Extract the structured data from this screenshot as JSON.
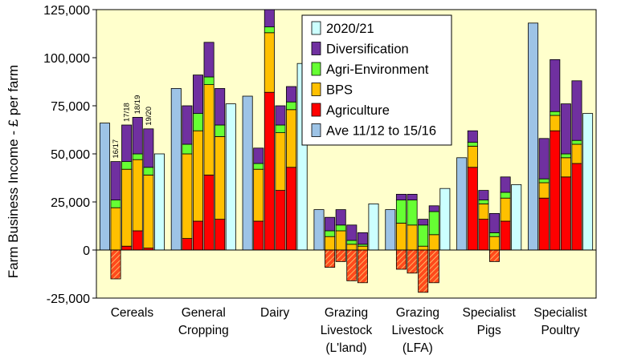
{
  "chart_data": {
    "type": "bar",
    "ylabel": "Farm Business Income - £ per farm",
    "ylim": [
      -25000,
      125000
    ],
    "yticks": [
      -25000,
      0,
      25000,
      50000,
      75000,
      100000,
      125000
    ],
    "ytick_labels": [
      "-25,000",
      "0",
      "25,000",
      "50,000",
      "75,000",
      "100,000",
      "125,000"
    ],
    "grid": false,
    "legend_placement": "top-right",
    "plot_background": "#ffffcc",
    "year_labels": [
      "16/17",
      "17/18",
      "18/19",
      "19/20"
    ],
    "series": [
      {
        "name": "2020/21",
        "color": "#ccffff"
      },
      {
        "name": "Diversification",
        "color": "#7030a0"
      },
      {
        "name": "Agri-Environment",
        "color": "#66ff33"
      },
      {
        "name": "BPS",
        "color": "#ffc000"
      },
      {
        "name": "Agriculture",
        "color": "#ff0000"
      },
      {
        "name": "Ave 11/12 to 15/16",
        "color": "#9dc3e6"
      }
    ],
    "categories": [
      {
        "label_lines": [
          "Cereals"
        ],
        "average": 66000,
        "years": [
          {
            "agriculture": -15000,
            "bps": 22000,
            "agri_env": 4000,
            "diversification": 20000
          },
          {
            "agriculture": 2000,
            "bps": 40000,
            "agri_env": 4000,
            "diversification": 19000
          },
          {
            "agriculture": 10000,
            "bps": 37000,
            "agri_env": 3000,
            "diversification": 19000
          },
          {
            "agriculture": 1000,
            "bps": 38000,
            "agri_env": 4000,
            "diversification": 20000
          }
        ],
        "year_2020_21": 50000
      },
      {
        "label_lines": [
          "General",
          "Cropping"
        ],
        "average": 84000,
        "years": [
          {
            "agriculture": 6000,
            "bps": 44000,
            "agri_env": 5000,
            "diversification": 20000
          },
          {
            "agriculture": 15000,
            "bps": 47000,
            "agri_env": 9000,
            "diversification": 20000
          },
          {
            "agriculture": 39000,
            "bps": 47000,
            "agri_env": 4000,
            "diversification": 18000
          },
          {
            "agriculture": 16000,
            "bps": 43000,
            "agri_env": 6000,
            "diversification": 19000
          }
        ],
        "year_2020_21": 76000
      },
      {
        "label_lines": [
          "Dairy"
        ],
        "average": 80000,
        "years": [
          {
            "agriculture": 15000,
            "bps": 27000,
            "agri_env": 3000,
            "diversification": 8000
          },
          {
            "agriculture": 82000,
            "bps": 31000,
            "agri_env": 3000,
            "diversification": 9000
          },
          {
            "agriculture": 31000,
            "bps": 30000,
            "agri_env": 4000,
            "diversification": 10000
          },
          {
            "agriculture": 43000,
            "bps": 30000,
            "agri_env": 4000,
            "diversification": 8000
          }
        ],
        "year_2020_21": 97000
      },
      {
        "label_lines": [
          "Grazing",
          "Livestock",
          "(L'land)"
        ],
        "average": 21000,
        "years": [
          {
            "agriculture": -9000,
            "bps": 7000,
            "agri_env": 3000,
            "diversification": 7000
          },
          {
            "agriculture": -6000,
            "bps": 10000,
            "agri_env": 3000,
            "diversification": 8000
          },
          {
            "agriculture": -16000,
            "bps": 3000,
            "agri_env": 2000,
            "diversification": 8000
          },
          {
            "agriculture": -17000,
            "bps": 2000,
            "agri_env": 1000,
            "diversification": 6000
          }
        ],
        "year_2020_21": 24000
      },
      {
        "label_lines": [
          "Grazing",
          "Livestock",
          "(LFA)"
        ],
        "average": 21000,
        "years": [
          {
            "agriculture": -10000,
            "bps": 14000,
            "agri_env": 12000,
            "diversification": 3000
          },
          {
            "agriculture": -12000,
            "bps": 13000,
            "agri_env": 13000,
            "diversification": 3000
          },
          {
            "agriculture": -22000,
            "bps": 2000,
            "agri_env": 11000,
            "diversification": 3000
          },
          {
            "agriculture": -17000,
            "bps": 8000,
            "agri_env": 12000,
            "diversification": 3000
          }
        ],
        "year_2020_21": 32000
      },
      {
        "label_lines": [
          "Specialist",
          "Pigs"
        ],
        "average": 48000,
        "years": [
          {
            "agriculture": 43000,
            "bps": 11000,
            "agri_env": 2000,
            "diversification": 6000
          },
          {
            "agriculture": 16000,
            "bps": 8000,
            "agri_env": 2000,
            "diversification": 5000
          },
          {
            "agriculture": -6000,
            "bps": 7000,
            "agri_env": 2000,
            "diversification": 10000
          },
          {
            "agriculture": 15000,
            "bps": 12000,
            "agri_env": 3000,
            "diversification": 8000
          }
        ],
        "year_2020_21": 34000
      },
      {
        "label_lines": [
          "Specialist",
          "Poultry"
        ],
        "average": 118000,
        "years": [
          {
            "agriculture": 27000,
            "bps": 8000,
            "agri_env": 2000,
            "diversification": 21000
          },
          {
            "agriculture": 62000,
            "bps": 8000,
            "agri_env": 2000,
            "diversification": 27000
          },
          {
            "agriculture": 38000,
            "bps": 10000,
            "agri_env": 2000,
            "diversification": 26000
          },
          {
            "agriculture": 45000,
            "bps": 10000,
            "agri_env": 2000,
            "diversification": 31000
          }
        ],
        "year_2020_21": 71000
      }
    ]
  }
}
